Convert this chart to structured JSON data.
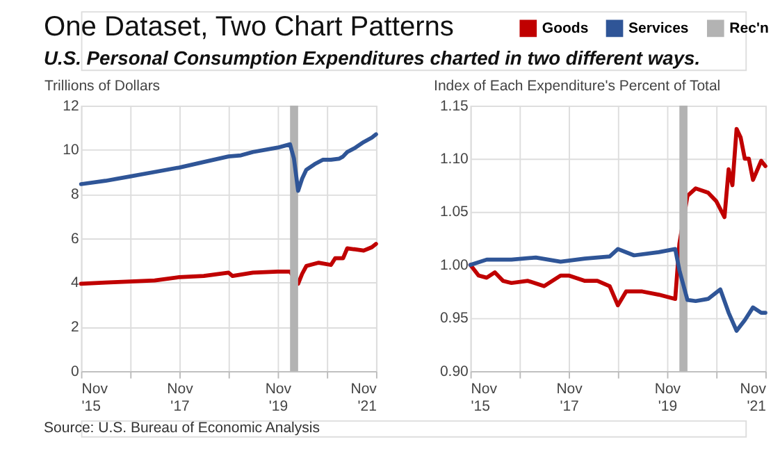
{
  "chart_data": [
    {
      "type": "line",
      "title": "One Dataset, Two Chart Patterns",
      "subtitle": "U.S. Personal Consumption Expenditures charted in two different ways.",
      "ylabel": "Trillions of Dollars",
      "annotations": [
        "Source: U.S. Bureau of Economic Analysis"
      ],
      "legend": "top right",
      "grid": true,
      "xlim": [
        "2015-11",
        "2021-11"
      ],
      "xticks": [
        {
          "value": "2015-11",
          "label": "Nov '15"
        },
        {
          "value": "2016-11",
          "label": null
        },
        {
          "value": "2017-11",
          "label": "Nov '17"
        },
        {
          "value": "2018-11",
          "label": null
        },
        {
          "value": "2019-11",
          "label": "Nov '19"
        },
        {
          "value": "2020-11",
          "label": null
        },
        {
          "value": "2021-11",
          "label": "Nov '21"
        }
      ],
      "ylim": [
        0,
        12
      ],
      "yticks": [
        0,
        2,
        4,
        6,
        8,
        10,
        12
      ],
      "bands": [
        {
          "axis": "x",
          "from": "2020-02",
          "to": "2020-04",
          "label": "Rec'n",
          "color": "#b3b3b3"
        }
      ],
      "series": [
        {
          "name": "Goods",
          "color": "#c00000",
          "x": [
            "2015-11",
            "2016-05",
            "2016-11",
            "2017-05",
            "2017-11",
            "2018-05",
            "2018-11",
            "2018-12",
            "2019-05",
            "2019-11",
            "2020-02",
            "2020-04",
            "2020-05",
            "2020-06",
            "2020-09",
            "2020-12",
            "2021-01",
            "2021-03",
            "2021-04",
            "2021-06",
            "2021-08",
            "2021-10",
            "2021-11"
          ],
          "values": [
            3.95,
            4.0,
            4.05,
            4.1,
            4.25,
            4.3,
            4.45,
            4.3,
            4.45,
            4.5,
            4.5,
            3.95,
            4.4,
            4.75,
            4.9,
            4.8,
            5.1,
            5.1,
            5.55,
            5.5,
            5.45,
            5.6,
            5.75
          ]
        },
        {
          "name": "Services",
          "color": "#2f5597",
          "x": [
            "2015-11",
            "2016-05",
            "2016-11",
            "2017-05",
            "2017-11",
            "2018-05",
            "2018-11",
            "2019-02",
            "2019-05",
            "2019-11",
            "2020-02",
            "2020-03",
            "2020-04",
            "2020-05",
            "2020-06",
            "2020-08",
            "2020-10",
            "2020-12",
            "2021-02",
            "2021-03",
            "2021-04",
            "2021-06",
            "2021-08",
            "2021-10",
            "2021-11"
          ],
          "values": [
            8.45,
            8.6,
            8.8,
            9.0,
            9.2,
            9.45,
            9.7,
            9.75,
            9.9,
            10.1,
            10.25,
            9.6,
            8.15,
            8.7,
            9.1,
            9.35,
            9.55,
            9.55,
            9.6,
            9.7,
            9.9,
            10.1,
            10.35,
            10.55,
            10.7
          ]
        }
      ]
    },
    {
      "type": "line",
      "ylabel": "Index of Each Expenditure's Percent of Total",
      "grid": true,
      "xlim": [
        "2015-11",
        "2021-11"
      ],
      "xticks": [
        {
          "value": "2015-11",
          "label": "Nov '15"
        },
        {
          "value": "2016-11",
          "label": null
        },
        {
          "value": "2017-11",
          "label": "Nov '17"
        },
        {
          "value": "2018-11",
          "label": null
        },
        {
          "value": "2019-11",
          "label": "Nov '19"
        },
        {
          "value": "2020-11",
          "label": null
        },
        {
          "value": "2021-11",
          "label": "Nov '21"
        }
      ],
      "ylim": [
        0.9,
        1.15
      ],
      "yticks": [
        {
          "value": 0.9,
          "label": "0.90"
        },
        {
          "value": 0.95,
          "label": "0.95"
        },
        {
          "value": 1.0,
          "label": "1.00"
        },
        {
          "value": 1.05,
          "label": "1.05"
        },
        {
          "value": 1.1,
          "label": "1.10"
        },
        {
          "value": 1.15,
          "label": "1.15"
        }
      ],
      "bands": [
        {
          "axis": "x",
          "from": "2020-02",
          "to": "2020-04",
          "color": "#b3b3b3"
        }
      ],
      "series": [
        {
          "name": "Goods",
          "color": "#c00000",
          "x": [
            "2015-11",
            "2016-01",
            "2016-03",
            "2016-05",
            "2016-07",
            "2016-09",
            "2017-01",
            "2017-05",
            "2017-09",
            "2017-11",
            "2018-03",
            "2018-06",
            "2018-09",
            "2018-11",
            "2019-01",
            "2019-05",
            "2019-09",
            "2020-01",
            "2020-02",
            "2020-04",
            "2020-06",
            "2020-09",
            "2020-11",
            "2021-01",
            "2021-02",
            "2021-03",
            "2021-04",
            "2021-05",
            "2021-06",
            "2021-07",
            "2021-08",
            "2021-10",
            "2021-11"
          ],
          "values": [
            1.0,
            0.99,
            0.988,
            0.993,
            0.985,
            0.983,
            0.985,
            0.98,
            0.99,
            0.99,
            0.985,
            0.985,
            0.98,
            0.962,
            0.975,
            0.975,
            0.972,
            0.968,
            1.02,
            1.065,
            1.072,
            1.068,
            1.06,
            1.045,
            1.09,
            1.075,
            1.128,
            1.12,
            1.1,
            1.1,
            1.08,
            1.098,
            1.093
          ]
        },
        {
          "name": "Services",
          "color": "#2f5597",
          "x": [
            "2015-11",
            "2016-03",
            "2016-09",
            "2017-03",
            "2017-09",
            "2018-03",
            "2018-09",
            "2018-11",
            "2019-03",
            "2019-09",
            "2020-01",
            "2020-02",
            "2020-04",
            "2020-06",
            "2020-09",
            "2020-12",
            "2021-02",
            "2021-04",
            "2021-06",
            "2021-08",
            "2021-10",
            "2021-11"
          ],
          "values": [
            1.0,
            1.005,
            1.005,
            1.007,
            1.003,
            1.006,
            1.008,
            1.015,
            1.009,
            1.012,
            1.015,
            0.995,
            0.967,
            0.966,
            0.968,
            0.977,
            0.955,
            0.938,
            0.948,
            0.96,
            0.955,
            0.955
          ]
        }
      ]
    }
  ]
}
